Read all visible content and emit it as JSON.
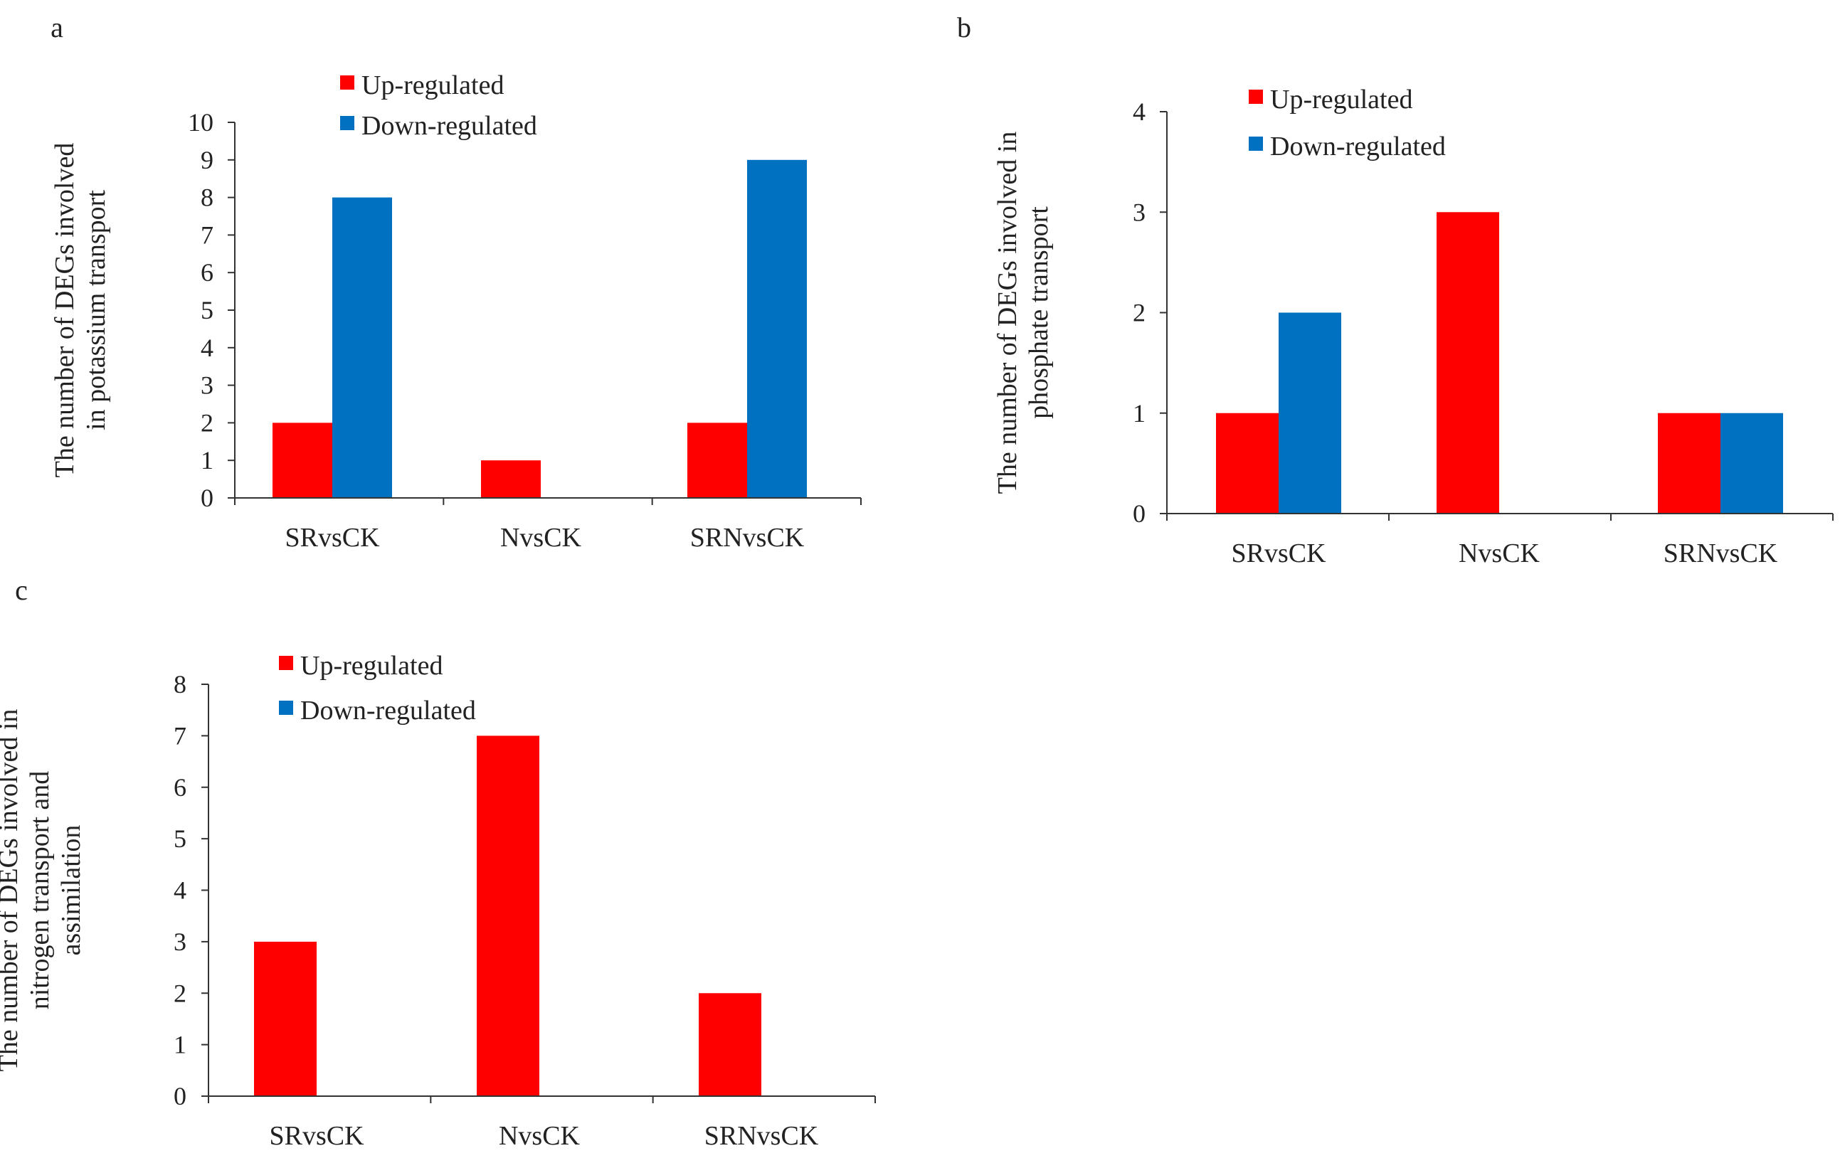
{
  "colors": {
    "up": "#ff0000",
    "down": "#0070c0",
    "axis": "#333333",
    "text": "#222222"
  },
  "chart_data": [
    {
      "panel": "a",
      "type": "bar",
      "categories": [
        "SRvsCK",
        "NvsCK",
        "SRNvsCK"
      ],
      "series": [
        {
          "name": "Up-regulated",
          "values": [
            2,
            1,
            2
          ]
        },
        {
          "name": "Down-regulated",
          "values": [
            8,
            0,
            9
          ]
        }
      ],
      "ylabel_lines": [
        "The number of  DEGs involved",
        "in potassium transport"
      ],
      "ylim": [
        0,
        10
      ],
      "yticks": [
        0,
        1,
        2,
        3,
        4,
        5,
        6,
        7,
        8,
        9,
        10
      ],
      "legend": "top-left",
      "grid": false
    },
    {
      "panel": "b",
      "type": "bar",
      "categories": [
        "SRvsCK",
        "NvsCK",
        "SRNvsCK"
      ],
      "series": [
        {
          "name": "Up-regulated",
          "values": [
            1,
            3,
            1
          ]
        },
        {
          "name": "Down-regulated",
          "values": [
            2,
            0,
            1
          ]
        }
      ],
      "ylabel_lines": [
        "The number of DEGs involved in",
        "phosphate transport"
      ],
      "ylim": [
        0,
        4
      ],
      "yticks": [
        0,
        1,
        2,
        3,
        4
      ],
      "legend": "top-left",
      "grid": false
    },
    {
      "panel": "c",
      "type": "bar",
      "categories": [
        "SRvsCK",
        "NvsCK",
        "SRNvsCK"
      ],
      "series": [
        {
          "name": "Up-regulated",
          "values": [
            3,
            7,
            2
          ]
        },
        {
          "name": "Down-regulated",
          "values": [
            0,
            0,
            0
          ]
        }
      ],
      "ylabel_lines": [
        "The number of DEGs involved in",
        "nitrogen transport and",
        "assimilation"
      ],
      "ylim": [
        0,
        8
      ],
      "yticks": [
        0,
        1,
        2,
        3,
        4,
        5,
        6,
        7,
        8
      ],
      "legend": "top-left",
      "grid": false
    }
  ]
}
